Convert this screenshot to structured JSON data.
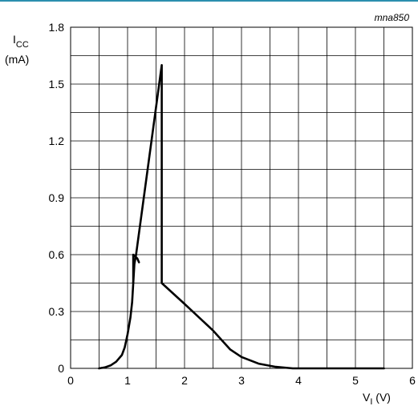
{
  "chart_data": {
    "type": "line",
    "figure_code": "mna850",
    "xlabel": {
      "main": "V",
      "sub": "I",
      "unit": " (V)"
    },
    "ylabel": {
      "main": "I",
      "sub": "CC",
      "unit": "(mA)"
    },
    "xlim": [
      0,
      6
    ],
    "ylim": [
      0,
      1.8
    ],
    "xticks": [
      0,
      1,
      2,
      3,
      4,
      5,
      6
    ],
    "yticks": [
      0,
      0.3,
      0.6,
      0.9,
      1.2,
      1.5,
      1.8
    ],
    "ytick_labels": [
      "0",
      "0.3",
      "0.6",
      "0.9",
      "1.2",
      "1.5",
      "1.8"
    ],
    "grid": true,
    "colors": {
      "accent": "#2b8fae",
      "line": "#000000",
      "grid": "#000000"
    },
    "series": [
      {
        "points": [
          [
            0.5,
            0.0
          ],
          [
            0.6,
            0.005
          ],
          [
            0.7,
            0.015
          ],
          [
            0.8,
            0.035
          ],
          [
            0.9,
            0.07
          ],
          [
            0.95,
            0.11
          ],
          [
            1.0,
            0.18
          ],
          [
            1.05,
            0.27
          ],
          [
            1.08,
            0.35
          ],
          [
            1.1,
            0.45
          ],
          [
            1.12,
            0.55
          ],
          [
            1.15,
            0.6
          ],
          [
            1.6,
            1.6
          ],
          [
            1.6,
            0.45
          ],
          [
            2.0,
            0.34
          ],
          [
            2.5,
            0.2
          ],
          [
            2.8,
            0.1
          ],
          [
            3.0,
            0.06
          ],
          [
            3.3,
            0.025
          ],
          [
            3.6,
            0.008
          ],
          [
            3.9,
            0.0
          ],
          [
            5.5,
            0.0
          ]
        ]
      },
      {
        "points": [
          [
            1.1,
            0.45
          ],
          [
            1.1,
            0.6
          ],
          [
            1.17,
            0.58
          ],
          [
            1.2,
            0.56
          ]
        ]
      }
    ]
  }
}
